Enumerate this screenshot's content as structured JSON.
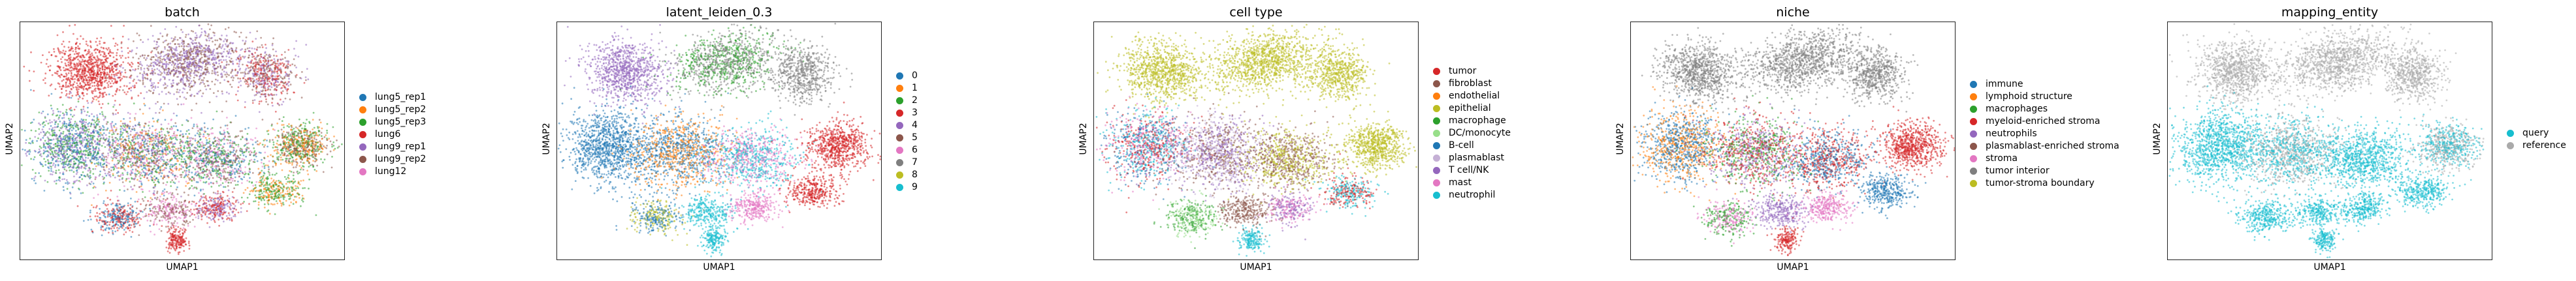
{
  "chart_data": [
    {
      "type": "scatter",
      "title": "batch",
      "xlabel": "UMAP1",
      "ylabel": "UMAP2",
      "grid": false,
      "legend_position": "right",
      "series": [
        {
          "name": "lung5_rep1",
          "color": "#1f77b4"
        },
        {
          "name": "lung5_rep2",
          "color": "#ff7f0e"
        },
        {
          "name": "lung5_rep3",
          "color": "#2ca02c"
        },
        {
          "name": "lung6",
          "color": "#d62728"
        },
        {
          "name": "lung9_rep1",
          "color": "#9467bd"
        },
        {
          "name": "lung9_rep2",
          "color": "#8c564b"
        },
        {
          "name": "lung12",
          "color": "#e377c2"
        }
      ]
    },
    {
      "type": "scatter",
      "title": "latent_leiden_0.3",
      "xlabel": "UMAP1",
      "ylabel": "UMAP2",
      "grid": false,
      "legend_position": "right",
      "series": [
        {
          "name": "0",
          "color": "#1f77b4"
        },
        {
          "name": "1",
          "color": "#ff7f0e"
        },
        {
          "name": "2",
          "color": "#2ca02c"
        },
        {
          "name": "3",
          "color": "#d62728"
        },
        {
          "name": "4",
          "color": "#9467bd"
        },
        {
          "name": "5",
          "color": "#8c564b"
        },
        {
          "name": "6",
          "color": "#e377c2"
        },
        {
          "name": "7",
          "color": "#7f7f7f"
        },
        {
          "name": "8",
          "color": "#bcbd22"
        },
        {
          "name": "9",
          "color": "#17becf"
        }
      ]
    },
    {
      "type": "scatter",
      "title": "cell type",
      "xlabel": "UMAP1",
      "ylabel": "UMAP2",
      "grid": false,
      "legend_position": "right",
      "series": [
        {
          "name": "tumor",
          "color": "#d62728"
        },
        {
          "name": "fibroblast",
          "color": "#8c564b"
        },
        {
          "name": "endothelial",
          "color": "#ff7f0e"
        },
        {
          "name": "epithelial",
          "color": "#bcbd22"
        },
        {
          "name": "macrophage",
          "color": "#2ca02c"
        },
        {
          "name": "DC/monocyte",
          "color": "#98df8a"
        },
        {
          "name": "B-cell",
          "color": "#1f77b4"
        },
        {
          "name": "plasmablast",
          "color": "#c5b0d5"
        },
        {
          "name": "T cell/NK",
          "color": "#9467bd"
        },
        {
          "name": "mast",
          "color": "#e377c2"
        },
        {
          "name": "neutrophil",
          "color": "#17becf"
        }
      ]
    },
    {
      "type": "scatter",
      "title": "niche",
      "xlabel": "UMAP1",
      "ylabel": "UMAP2",
      "grid": false,
      "legend_position": "right",
      "series": [
        {
          "name": "immune",
          "color": "#1f77b4"
        },
        {
          "name": "lymphoid structure",
          "color": "#ff7f0e"
        },
        {
          "name": "macrophages",
          "color": "#2ca02c"
        },
        {
          "name": "myeloid-enriched stroma",
          "color": "#d62728"
        },
        {
          "name": "neutrophils",
          "color": "#9467bd"
        },
        {
          "name": "plasmablast-enriched stroma",
          "color": "#8c564b"
        },
        {
          "name": "stroma",
          "color": "#e377c2"
        },
        {
          "name": "tumor interior",
          "color": "#7f7f7f"
        },
        {
          "name": "tumor-stroma boundary",
          "color": "#bcbd22"
        }
      ]
    },
    {
      "type": "scatter",
      "title": "mapping_entity",
      "xlabel": "UMAP1",
      "ylabel": "UMAP2",
      "grid": false,
      "legend_position": "right",
      "series": [
        {
          "name": "query",
          "color": "#17becf"
        },
        {
          "name": "reference",
          "color": "#aaaaaa"
        }
      ]
    }
  ]
}
